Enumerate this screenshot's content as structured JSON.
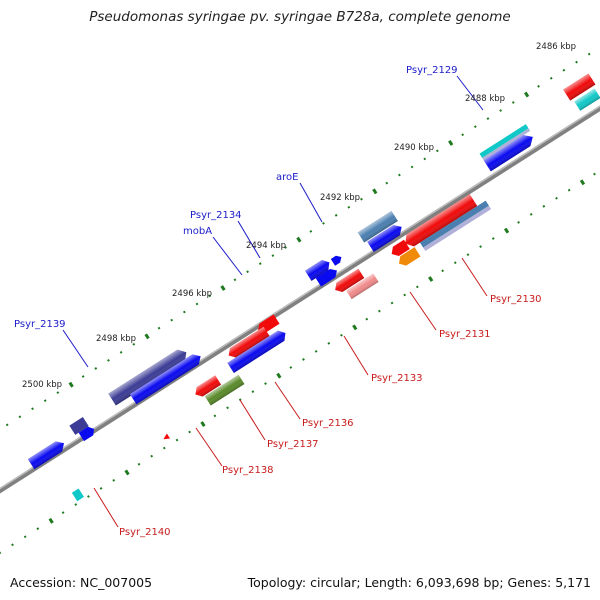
{
  "title": "Pseudomonas syringae pv. syringae B728a, complete genome",
  "footer": {
    "accession": "Accession: NC_007005",
    "summary": "Topology: circular; Length: 6,093,698 bp; Genes: 5,171"
  },
  "colors": {
    "backbone": "#808080",
    "tick": "#1f7a1f",
    "fwd_label": "#1c1cc8",
    "rev_label": "#c81c1c",
    "blue": "#0a0af0",
    "red": "#f00a0a",
    "steel": "#4a7fb0",
    "slate": "#3c3c96",
    "pink": "#f08a8a",
    "olive": "#5a8a2a",
    "orange": "#f08a0a",
    "cyan": "#10c8c8",
    "lavender": "#b0b0d8"
  },
  "kbp_labels": [
    "2486 kbp",
    "2488 kbp",
    "2490 kbp",
    "2492 kbp",
    "2494 kbp",
    "2496 kbp",
    "2498 kbp",
    "2500 kbp"
  ],
  "forward_gene_labels": [
    "Psyr_2129",
    "aroE",
    "Psyr_2134",
    "mobA",
    "Psyr_2139"
  ],
  "reverse_gene_labels": [
    "Psyr_2130",
    "Psyr_2131",
    "Psyr_2133",
    "Psyr_2136",
    "Psyr_2137",
    "Psyr_2138",
    "Psyr_2140"
  ]
}
